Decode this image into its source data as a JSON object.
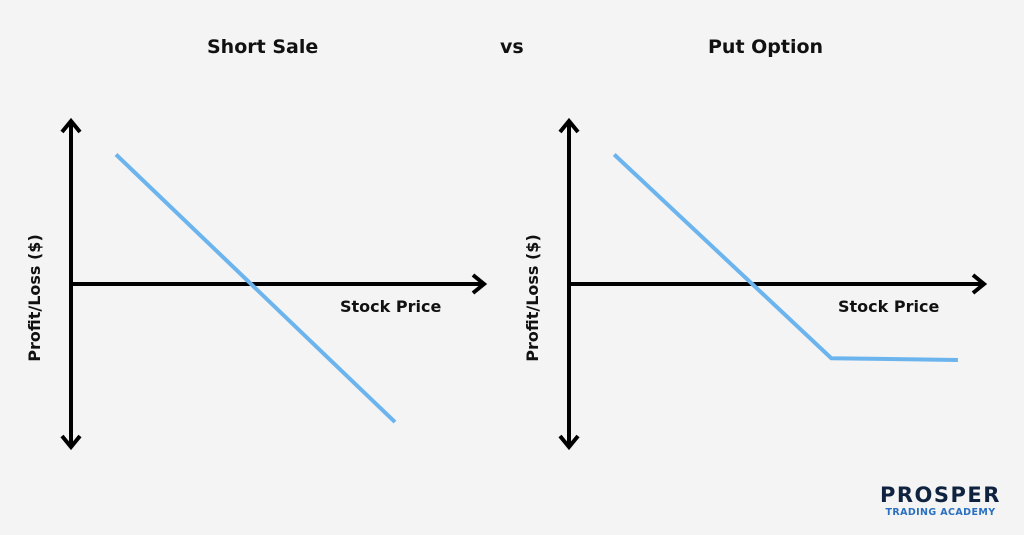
{
  "header": {
    "vs_label": "vs"
  },
  "colors": {
    "line": "#6cb4ee",
    "axis": "#000000",
    "background": "#f4f4f4"
  },
  "chart_data": [
    {
      "type": "line",
      "title": "Short Sale",
      "xlabel": "Stock Price",
      "ylabel": "Profit/Loss ($)",
      "grid": false,
      "x": [
        0.25,
        1.8
      ],
      "series": [
        {
          "values": [
            0.75,
            -0.8
          ]
        }
      ],
      "xlim": [
        0,
        2.3
      ],
      "ylim": [
        -0.95,
        0.95
      ]
    },
    {
      "type": "line",
      "title": "Put Option",
      "xlabel": "Stock Price",
      "ylabel": "Profit/Loss ($)",
      "grid": false,
      "x": [
        0.25,
        1.45,
        2.15
      ],
      "series": [
        {
          "values": [
            0.75,
            -0.43,
            -0.44
          ]
        }
      ],
      "xlim": [
        0,
        2.3
      ],
      "ylim": [
        -0.95,
        0.95
      ]
    }
  ],
  "logo": {
    "main": "PROSPER",
    "sub": "TRADING ACADEMY"
  }
}
